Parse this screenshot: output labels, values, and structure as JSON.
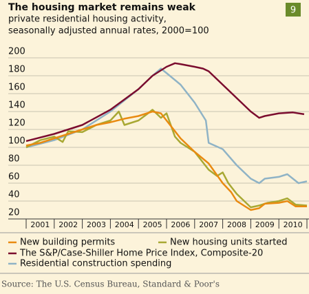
{
  "chart_data": {
    "type": "line",
    "title": "The housing market remains weak",
    "subtitle": [
      "private residential housing activity,",
      "seasonally adjusted annual rates, 2000=100"
    ],
    "badge": "9",
    "source": "Source: The U.S. Census Bureau, Standard & Poor's",
    "xlim": [
      2001,
      2011
    ],
    "xticks": [
      {
        "value": 2001.5,
        "label": "2001"
      },
      {
        "value": 2002.5,
        "label": "2002"
      },
      {
        "value": 2003.5,
        "label": "2003"
      },
      {
        "value": 2004.5,
        "label": "2004"
      },
      {
        "value": 2005.5,
        "label": "2005"
      },
      {
        "value": 2006.5,
        "label": "2006"
      },
      {
        "value": 2007.5,
        "label": "2007"
      },
      {
        "value": 2008.5,
        "label": "2008"
      },
      {
        "value": 2009.5,
        "label": "2009"
      },
      {
        "value": 2010.5,
        "label": "2010"
      }
    ],
    "ylim": [
      20,
      200
    ],
    "yticks": [
      20,
      40,
      60,
      80,
      100,
      120,
      140,
      160,
      180,
      200
    ],
    "grid": true,
    "series": [
      {
        "name": "Residential construction spending",
        "color": "#8fb3c6",
        "x": [
          2001,
          2002,
          2003,
          2004,
          2005,
          2005.5,
          2005.8,
          2006,
          2006.5,
          2007,
          2007.4,
          2007.5,
          2008,
          2008.5,
          2009,
          2009.3,
          2009.5,
          2010,
          2010.3,
          2010.5,
          2010.7,
          2011
        ],
        "values": [
          100,
          108,
          120,
          140,
          165,
          180,
          188,
          183,
          170,
          150,
          130,
          105,
          98,
          80,
          65,
          60,
          65,
          67,
          70,
          65,
          60,
          62
        ]
      },
      {
        "name": "The S&P/Case-Shiller Home Price Index, Composite-20",
        "color": "#7b0c2e",
        "x": [
          2001,
          2002,
          2003,
          2004,
          2005,
          2005.5,
          2006,
          2006.3,
          2006.5,
          2007,
          2007.3,
          2007.5,
          2008,
          2008.5,
          2009,
          2009.3,
          2009.5,
          2010,
          2010.5,
          2010.9
        ],
        "values": [
          107,
          115,
          125,
          142,
          165,
          180,
          190,
          194,
          193,
          190,
          188,
          185,
          170,
          155,
          140,
          133,
          135,
          138,
          139,
          137
        ]
      },
      {
        "name": "New housing units started",
        "color": "#a8a833",
        "x": [
          2001,
          2001.5,
          2002,
          2002.3,
          2002.5,
          2003,
          2003.5,
          2004,
          2004.3,
          2004.5,
          2005,
          2005.3,
          2005.5,
          2005.8,
          2006,
          2006.3,
          2006.5,
          2007,
          2007.5,
          2007.8,
          2008,
          2008.2,
          2008.5,
          2009,
          2009.3,
          2009.6,
          2010,
          2010.3,
          2010.6,
          2011
        ],
        "values": [
          100,
          108,
          112,
          106,
          118,
          117,
          125,
          130,
          140,
          125,
          130,
          137,
          142,
          133,
          138,
          112,
          105,
          95,
          75,
          68,
          72,
          60,
          48,
          33,
          35,
          38,
          40,
          43,
          36,
          35
        ]
      },
      {
        "name": "New building permits",
        "color": "#e98a10",
        "x": [
          2001,
          2001.5,
          2002,
          2002.5,
          2003,
          2003.5,
          2004,
          2004.5,
          2005,
          2005.5,
          2005.8,
          2006,
          2006.5,
          2007,
          2007.5,
          2008,
          2008.3,
          2008.5,
          2009,
          2009.3,
          2009.5,
          2010,
          2010.3,
          2010.6,
          2011
        ],
        "values": [
          102,
          105,
          110,
          115,
          120,
          125,
          128,
          132,
          135,
          140,
          138,
          130,
          110,
          95,
          82,
          60,
          50,
          40,
          30,
          32,
          37,
          38,
          40,
          34,
          34
        ]
      }
    ]
  }
}
